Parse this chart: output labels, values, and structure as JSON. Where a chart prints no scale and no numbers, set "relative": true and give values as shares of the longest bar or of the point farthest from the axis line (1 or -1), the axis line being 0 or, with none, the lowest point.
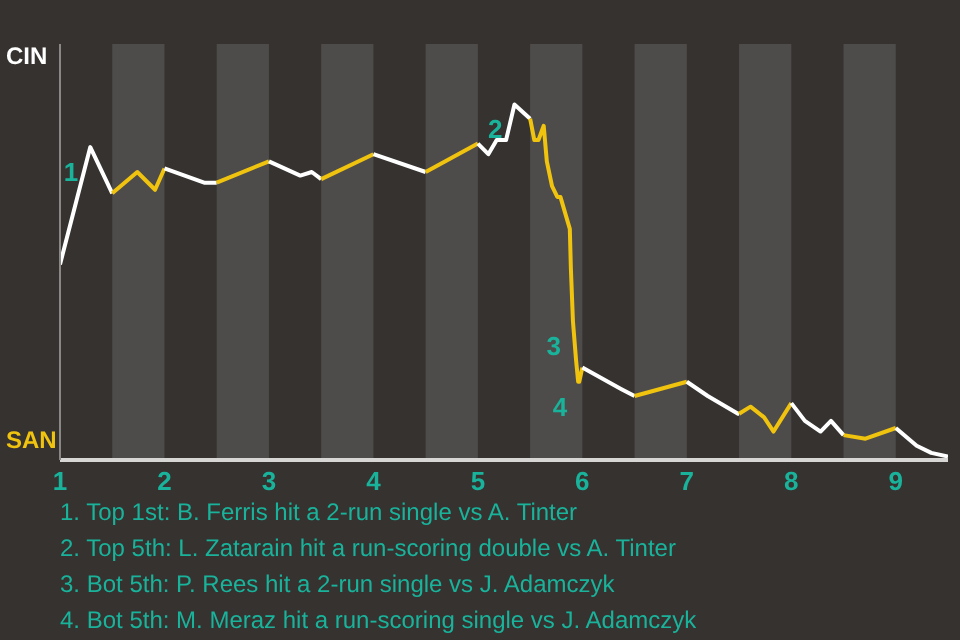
{
  "chart_data": {
    "type": "line",
    "relative": true,
    "xlim": [
      1,
      9.5
    ],
    "xticks": [
      1,
      2,
      3,
      4,
      5,
      6,
      7,
      8,
      9
    ],
    "series": [
      {
        "color": "#ffffff",
        "x": [
          1.0,
          1.29,
          1.5
        ],
        "values": [
          0.55,
          0.88,
          0.75
        ]
      },
      {
        "color": "#f0c30f",
        "x": [
          1.5,
          1.74,
          1.91,
          2.0
        ],
        "values": [
          0.75,
          0.81,
          0.76,
          0.82
        ]
      },
      {
        "color": "#ffffff",
        "x": [
          2.0,
          2.38,
          2.5
        ],
        "values": [
          0.82,
          0.78,
          0.78
        ]
      },
      {
        "color": "#f0c30f",
        "x": [
          2.5,
          3.0
        ],
        "values": [
          0.78,
          0.84
        ]
      },
      {
        "color": "#ffffff",
        "x": [
          3.0,
          3.3,
          3.41,
          3.5
        ],
        "values": [
          0.84,
          0.8,
          0.81,
          0.79
        ]
      },
      {
        "color": "#f0c30f",
        "x": [
          3.5,
          4.0
        ],
        "values": [
          0.79,
          0.86
        ]
      },
      {
        "color": "#ffffff",
        "x": [
          4.0,
          4.5
        ],
        "values": [
          0.86,
          0.81
        ]
      },
      {
        "color": "#f0c30f",
        "x": [
          4.5,
          5.0
        ],
        "values": [
          0.81,
          0.89
        ]
      },
      {
        "color": "#ffffff",
        "x": [
          5.0,
          5.1,
          5.18,
          5.27,
          5.35,
          5.5
        ],
        "values": [
          0.89,
          0.86,
          0.9,
          0.9,
          1,
          0.96
        ]
      },
      {
        "color": "#f0c30f",
        "x": [
          5.5,
          5.54,
          5.58,
          5.63,
          5.66,
          5.71,
          5.76,
          5.79,
          5.88,
          5.89,
          5.91,
          5.94,
          5.96,
          5.97,
          6.0
        ],
        "values": [
          0.96,
          0.9,
          0.9,
          0.94,
          0.84,
          0.77,
          0.74,
          0.74,
          0.65,
          0.54,
          0.39,
          0.28,
          0.22,
          0.22,
          0.26
        ]
      },
      {
        "color": "#ffffff",
        "x": [
          6.0,
          6.37,
          6.5
        ],
        "values": [
          0.26,
          0.2,
          0.18
        ]
      },
      {
        "color": "#f0c30f",
        "x": [
          6.5,
          7.0
        ],
        "values": [
          0.18,
          0.22
        ]
      },
      {
        "color": "#ffffff",
        "x": [
          7.0,
          7.2,
          7.49,
          7.5
        ],
        "values": [
          0.22,
          0.18,
          0.13,
          0.13
        ]
      },
      {
        "color": "#f0c30f",
        "x": [
          7.5,
          7.61,
          7.74,
          7.83,
          8.0
        ],
        "values": [
          0.13,
          0.15,
          0.12,
          0.08,
          0.16
        ]
      },
      {
        "color": "#ffffff",
        "x": [
          8.0,
          8.13,
          8.28,
          8.38,
          8.5
        ],
        "values": [
          0.16,
          0.11,
          0.08,
          0.11,
          0.07
        ]
      },
      {
        "color": "#f0c30f",
        "x": [
          8.5,
          8.71,
          9.0
        ],
        "values": [
          0.07,
          0.06,
          0.09
        ]
      },
      {
        "color": "#ffffff",
        "x": [
          9.0,
          9.2,
          9.34,
          9.5
        ],
        "values": [
          0.09,
          0.04,
          0.02,
          0.01
        ]
      }
    ],
    "bands": [
      {
        "axis": "x",
        "from": 1.5,
        "to": 2,
        "color": "#4e4c4a"
      },
      {
        "axis": "x",
        "from": 2.5,
        "to": 3,
        "color": "#4e4c4a"
      },
      {
        "axis": "x",
        "from": 3.5,
        "to": 4,
        "color": "#4e4c4a"
      },
      {
        "axis": "x",
        "from": 4.5,
        "to": 5,
        "color": "#4e4c4a"
      },
      {
        "axis": "x",
        "from": 5.5,
        "to": 6,
        "color": "#4e4c4a"
      },
      {
        "axis": "x",
        "from": 6.5,
        "to": 7,
        "color": "#4e4c4a"
      },
      {
        "axis": "x",
        "from": 7.5,
        "to": 8,
        "color": "#4e4c4a"
      },
      {
        "axis": "x",
        "from": 8.5,
        "to": 9,
        "color": "#4e4c4a"
      }
    ],
    "annotations": [
      "CIN",
      "SAN",
      {
        "text": "1",
        "x": 1.29,
        "y": 0.88
      },
      {
        "text": "2",
        "x": 5.35,
        "y": 1
      },
      {
        "text": "3",
        "x": 5.91,
        "y": 0.39
      },
      {
        "text": "4",
        "x": 5.97,
        "y": 0.22
      },
      "1. Top 1st: B. Ferris hit a 2-run single vs A. Tinter",
      "2. Top 5th: L. Zatarain hit a run-scoring double vs A. Tinter",
      "3. Bot 5th: P. Rees hit a 2-run single vs J. Adamczyk",
      "4. Bot 5th: M. Meraz hit a run-scoring single vs J. Adamczyk"
    ]
  }
}
